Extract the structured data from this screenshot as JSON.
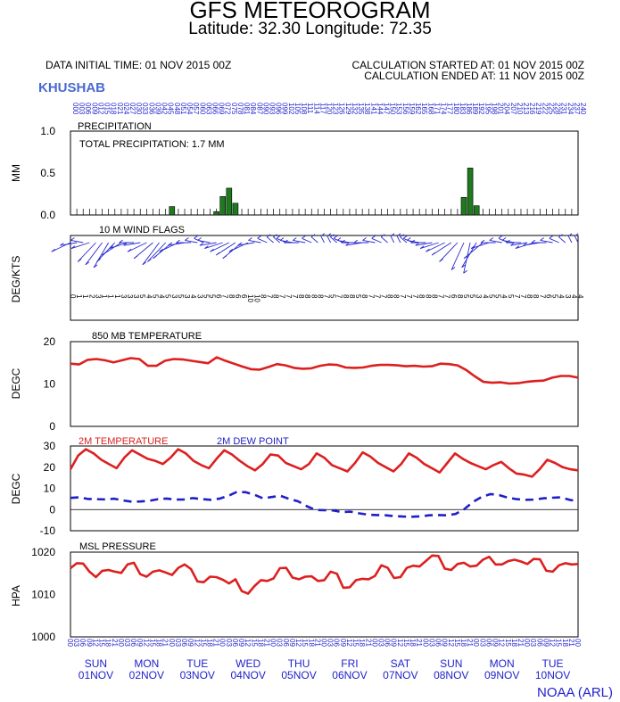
{
  "header": {
    "title": "GFS METEOROGRAM",
    "subtitle": "Latitude: 32.30 Longitude:  72.35",
    "init_time": "DATA INITIAL TIME: 01 NOV 2015 00Z",
    "calc_started": "CALCULATION STARTED AT: 01 NOV 2015 00Z",
    "calc_ended": "CALCULATION ENDED AT: 11 NOV 2015 00Z",
    "station": "KHUSHAB",
    "credit": "NOAA (ARL)"
  },
  "colors": {
    "precip": "#1e7a1e",
    "temperature": "#dd1f1f",
    "dewpoint": "#1f1fc8",
    "wind": "#2a2ad0",
    "time_labels": "#2222cc"
  },
  "chart_data": [
    {
      "id": "precipitation",
      "type": "bar",
      "title": "PRECIPITATION",
      "annotation": "TOTAL PRECIPITATION:   1.7 MM",
      "ylabel": "MM",
      "ylim": [
        0,
        1.0
      ],
      "yticks": [
        "0.0",
        "0.5",
        "1.0"
      ],
      "x_hours": [
        0,
        3,
        6,
        9,
        12,
        15,
        18,
        21,
        24,
        27,
        30,
        33,
        36,
        39,
        42,
        45,
        48,
        51,
        54,
        57,
        60,
        63,
        66,
        69,
        72,
        75,
        78,
        81,
        84,
        87,
        90,
        93,
        96,
        99,
        102,
        105,
        108,
        111,
        114,
        117,
        120,
        123,
        126,
        129,
        132,
        135,
        138,
        141,
        144,
        147,
        150,
        153,
        156,
        159,
        162,
        165,
        168,
        171,
        174,
        177,
        180,
        183,
        186,
        189,
        192,
        195,
        198,
        201,
        204,
        207,
        210,
        213,
        216,
        219,
        222,
        225,
        228,
        231,
        234,
        237,
        240
      ],
      "values": [
        0,
        0,
        0,
        0,
        0,
        0,
        0,
        0,
        0,
        0,
        0,
        0,
        0,
        0,
        0,
        0,
        0.1,
        0,
        0,
        0,
        0,
        0,
        0,
        0.04,
        0.22,
        0.32,
        0.14,
        0,
        0,
        0,
        0,
        0,
        0,
        0,
        0,
        0,
        0,
        0,
        0,
        0,
        0,
        0,
        0,
        0,
        0,
        0,
        0,
        0,
        0,
        0,
        0,
        0,
        0,
        0,
        0,
        0,
        0,
        0,
        0,
        0,
        0,
        0,
        0.21,
        0.56,
        0.11,
        0,
        0,
        0,
        0,
        0,
        0,
        0,
        0,
        0,
        0,
        0,
        0,
        0,
        0,
        0,
        0
      ]
    },
    {
      "id": "wind",
      "type": "scatter",
      "title": "10 M  WIND FLAGS",
      "ylabel": "DEG/KTS",
      "direction_deg": [
        280,
        300,
        320,
        290,
        250,
        240,
        230,
        250,
        270,
        290,
        310,
        300,
        280,
        260,
        240,
        250,
        260,
        280,
        300,
        310,
        320,
        330,
        320,
        300,
        290,
        280,
        270,
        260,
        280,
        300,
        320,
        330,
        340,
        340,
        330,
        320,
        310,
        320,
        330,
        340,
        350,
        350,
        340,
        330,
        320,
        310,
        300,
        310,
        320,
        330,
        340,
        350,
        350,
        340,
        330,
        320,
        310,
        300,
        290,
        280,
        270,
        250,
        220,
        200,
        230,
        260,
        290,
        310,
        320,
        330,
        320,
        310,
        300,
        290,
        300,
        310,
        320,
        330,
        340,
        350,
        350
      ],
      "speed_kts": [
        "0",
        "1",
        "1",
        "2",
        "3",
        "1",
        "1",
        "1",
        "3",
        "3",
        "3",
        "5",
        "4",
        "5",
        "4",
        "5",
        "3",
        "5",
        "3",
        "4",
        "3",
        "5",
        "5",
        "6",
        "7",
        "8",
        "6",
        "6",
        "10",
        "10",
        "8",
        "7",
        "8",
        "7",
        "7",
        "7",
        "8",
        "8",
        "8",
        "8",
        "7",
        "5",
        "7",
        "8",
        "8",
        "5",
        "8",
        "7",
        "7",
        "7",
        "8",
        "8",
        "7",
        "7",
        "7",
        "8",
        "8",
        "8",
        "7",
        "7",
        "6",
        "8",
        "5",
        "5",
        "3",
        "4",
        "5",
        "5",
        "4",
        "5",
        "7",
        "7",
        "8",
        "8",
        "7",
        "6",
        "5",
        "4",
        "3",
        "4",
        "4"
      ]
    },
    {
      "id": "t850",
      "type": "line",
      "title": "850 MB  TEMPERATURE",
      "ylabel": "DEGC",
      "ylim": [
        0,
        20
      ],
      "yticks": [
        "0",
        "10",
        "20"
      ],
      "values": [
        14.8,
        14.6,
        15.7,
        15.9,
        15.6,
        15.1,
        15.6,
        16.1,
        15.9,
        14.3,
        14.3,
        15.5,
        15.9,
        15.8,
        15.5,
        15.2,
        14.9,
        16.3,
        15.5,
        14.8,
        14.1,
        13.5,
        13.4,
        14.0,
        14.7,
        14.4,
        13.8,
        13.6,
        13.7,
        14.3,
        14.6,
        14.5,
        13.9,
        13.8,
        13.9,
        14.3,
        14.5,
        14.5,
        14.4,
        14.2,
        14.3,
        14.1,
        14.2,
        14.8,
        14.7,
        14.4,
        13.3,
        11.8,
        10.5,
        10.3,
        10.4,
        10.1,
        10.2,
        10.5,
        10.7,
        10.8,
        11.5,
        11.9,
        11.9,
        11.5
      ]
    },
    {
      "id": "t2m",
      "type": "line",
      "legend": [
        "2M TEMPERATURE",
        "2M  DEW POINT"
      ],
      "ylabel": "DEGC",
      "ylim": [
        -10,
        30
      ],
      "yticks": [
        "-10",
        "0",
        "10",
        "20",
        "30"
      ],
      "series": [
        {
          "name": "2M TEMPERATURE",
          "values": [
            19,
            25.5,
            28.5,
            26.5,
            23.5,
            21.5,
            19.5,
            24.5,
            28,
            26,
            24,
            23,
            21.5,
            24.5,
            28.5,
            26.5,
            23,
            21,
            19.5,
            24,
            28,
            26,
            23,
            20.5,
            18.5,
            21.5,
            26,
            25.5,
            22,
            20.5,
            19,
            21.5,
            26.5,
            24.5,
            21,
            19.5,
            18,
            22,
            27,
            25,
            22,
            20,
            18,
            21.5,
            26.5,
            24.5,
            21.5,
            19.5,
            17.5,
            22,
            26.5,
            24,
            22,
            20.5,
            19,
            21,
            22.5,
            19.5,
            17,
            16.5,
            15.5,
            19,
            23.5,
            22,
            20,
            19,
            18.5
          ]
        },
        {
          "name": "2M  DEW POINT",
          "values": [
            5.5,
            5.8,
            5,
            4.9,
            4.8,
            5.1,
            4.3,
            3.7,
            3.8,
            4.1,
            4.9,
            5.2,
            4.7,
            4.8,
            5.4,
            4.9,
            4.6,
            5.1,
            6.4,
            8.3,
            8.2,
            7.0,
            5.3,
            5.9,
            6.5,
            5.0,
            3.9,
            1.6,
            -0.2,
            -0.3,
            -0.4,
            -1.2,
            -1.0,
            -1.8,
            -2.4,
            -2.6,
            -2.7,
            -3.1,
            -3.3,
            -3.4,
            -3.2,
            -2.7,
            -2.6,
            -2.7,
            -2.1,
            0.2,
            3.6,
            6.0,
            7.3,
            6.8,
            5.6,
            4.9,
            4.6,
            4.7,
            5.3,
            5.6,
            5.8,
            4.6,
            3.9
          ]
        }
      ]
    },
    {
      "id": "pressure",
      "type": "line",
      "title": "MSL PRESSURE",
      "ylabel": "HPA",
      "ylim": [
        1000,
        1020
      ],
      "yticks": [
        "1000",
        "1010",
        "1020"
      ],
      "values": [
        1016.2,
        1017.4,
        1017.3,
        1015.4,
        1014.1,
        1015.6,
        1015.8,
        1015.4,
        1015.1,
        1017.1,
        1017.5,
        1014.8,
        1014.2,
        1015.4,
        1015.7,
        1015.2,
        1014.6,
        1016.3,
        1017.1,
        1016.0,
        1013.1,
        1012.9,
        1014.2,
        1014.1,
        1013.5,
        1012.6,
        1013.6,
        1010.8,
        1010.2,
        1012.0,
        1013.4,
        1013.2,
        1013.8,
        1016.2,
        1016.3,
        1014.0,
        1013.6,
        1014.2,
        1014.3,
        1013.2,
        1013.4,
        1015.4,
        1014.9,
        1011.6,
        1011.7,
        1013.4,
        1013.7,
        1013.6,
        1014.4,
        1016.9,
        1016.3,
        1013.9,
        1014.1,
        1016.3,
        1016.8,
        1016.6,
        1017.9,
        1019.2,
        1019.1,
        1016.1,
        1015.8,
        1017.2,
        1017.5,
        1016.6,
        1016.8,
        1018.2,
        1018.9,
        1017.1,
        1017.1,
        1017.9,
        1018.2,
        1017.8,
        1017.2,
        1018.4,
        1018.3,
        1015.6,
        1015.4,
        1016.9,
        1017.4,
        1017.1,
        1017.2
      ]
    }
  ],
  "time_axis": {
    "hour_labels": [
      "000",
      "003",
      "006",
      "009",
      "012",
      "015",
      "018",
      "021",
      "024",
      "027",
      "030",
      "033",
      "036",
      "039",
      "042",
      "045",
      "048",
      "051",
      "054",
      "057",
      "060",
      "063",
      "066",
      "069",
      "072",
      "075",
      "078",
      "081",
      "084",
      "087",
      "090",
      "093",
      "096",
      "099",
      "102",
      "105",
      "108",
      "111",
      "114",
      "117",
      "120",
      "123",
      "126",
      "129",
      "132",
      "135",
      "138",
      "141",
      "144",
      "147",
      "150",
      "153",
      "156",
      "159",
      "162",
      "165",
      "168",
      "171",
      "174",
      "177",
      "180",
      "183",
      "186",
      "189",
      "192",
      "195",
      "198",
      "201",
      "204",
      "207",
      "210",
      "213",
      "216",
      "219",
      "222",
      "225",
      "228",
      "231",
      "234",
      "237",
      "240"
    ],
    "utc_labels": [
      "00",
      "03",
      "06",
      "09",
      "12",
      "15",
      "18",
      "21",
      "00",
      "03",
      "06",
      "09",
      "12",
      "15",
      "18",
      "21",
      "00",
      "03",
      "06",
      "09",
      "12",
      "15",
      "18",
      "21",
      "00",
      "03",
      "06",
      "09",
      "12",
      "15",
      "18",
      "21",
      "00",
      "03",
      "06",
      "09",
      "12",
      "15",
      "18",
      "21",
      "00",
      "03",
      "06",
      "09",
      "12",
      "15",
      "18",
      "21",
      "00",
      "03",
      "06",
      "09",
      "12",
      "15",
      "18",
      "21",
      "00",
      "03",
      "06",
      "09",
      "12",
      "15",
      "18",
      "21",
      "00",
      "03",
      "06",
      "09",
      "12",
      "15",
      "18",
      "21",
      "00",
      "03",
      "06",
      "09",
      "12",
      "15",
      "18",
      "21",
      "00"
    ],
    "days": [
      {
        "dow": "SUN",
        "date": "01NOV"
      },
      {
        "dow": "MON",
        "date": "02NOV"
      },
      {
        "dow": "TUE",
        "date": "03NOV"
      },
      {
        "dow": "WED",
        "date": "04NOV"
      },
      {
        "dow": "THU",
        "date": "05NOV"
      },
      {
        "dow": "FRI",
        "date": "06NOV"
      },
      {
        "dow": "SAT",
        "date": "07NOV"
      },
      {
        "dow": "SUN",
        "date": "08NOV"
      },
      {
        "dow": "MON",
        "date": "09NOV"
      },
      {
        "dow": "TUE",
        "date": "10NOV"
      }
    ]
  }
}
